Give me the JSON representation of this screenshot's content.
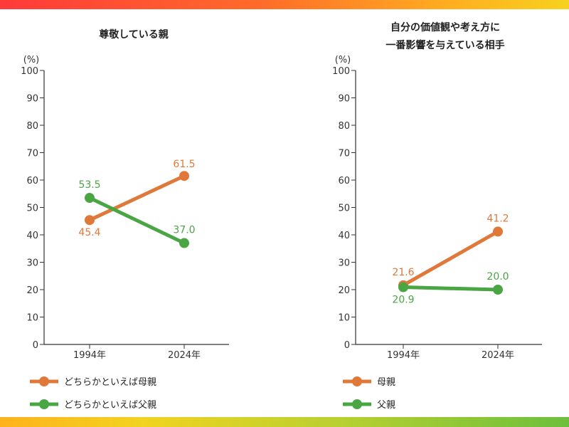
{
  "colors": {
    "mother": "#e0783a",
    "father": "#4aa543"
  },
  "chart_data": [
    {
      "type": "line",
      "title": "尊敬している親",
      "ylabel": "(%)",
      "categories": [
        "1994年",
        "2024年"
      ],
      "ylim": [
        0,
        100
      ],
      "yticks": [
        0,
        10,
        20,
        30,
        40,
        50,
        60,
        70,
        80,
        90,
        100
      ],
      "series": [
        {
          "name": "どちらかといえば母親",
          "key": "mother",
          "values": [
            45.4,
            61.5
          ]
        },
        {
          "name": "どちらかといえば父親",
          "key": "father",
          "values": [
            53.5,
            37.0
          ]
        }
      ]
    },
    {
      "type": "line",
      "title": "自分の価値観や考え方に\n一番影響を与えている相手",
      "title_lines": [
        "自分の価値観や考え方に",
        "一番影響を与えている相手"
      ],
      "ylabel": "(%)",
      "categories": [
        "1994年",
        "2024年"
      ],
      "ylim": [
        0,
        100
      ],
      "yticks": [
        0,
        10,
        20,
        30,
        40,
        50,
        60,
        70,
        80,
        90,
        100
      ],
      "series": [
        {
          "name": "母親",
          "key": "mother",
          "values": [
            21.6,
            41.2
          ]
        },
        {
          "name": "父親",
          "key": "father",
          "values": [
            20.9,
            20.0
          ]
        }
      ]
    }
  ]
}
